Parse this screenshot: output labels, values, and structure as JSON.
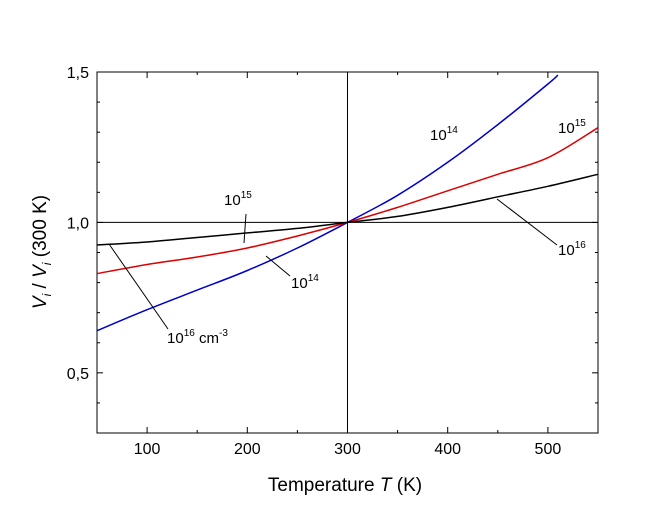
{
  "chart_data": {
    "type": "line",
    "title": "",
    "xlabel": {
      "prefix": "Temperature ",
      "italic": "T",
      "suffix": " (K)"
    },
    "ylabel": {
      "v1": "V",
      "sub1": "i",
      "slash": " / ",
      "v2": "V",
      "sub2": "i",
      "suffix": " (300 K)"
    },
    "xlim": [
      50,
      550
    ],
    "ylim": [
      0.3,
      1.5
    ],
    "xticks": [
      100,
      200,
      300,
      400,
      500
    ],
    "xtick_labels": [
      "100",
      "200",
      "300",
      "400",
      "500"
    ],
    "yticks": [
      0.5,
      1.0,
      1.5
    ],
    "ytick_labels": [
      "0,5",
      "1,0",
      "1,5"
    ],
    "reference_lines": {
      "y": 1.0,
      "x": 300
    },
    "series": [
      {
        "name": "10^14",
        "color": "#0000cc",
        "x": [
          50,
          100,
          150,
          200,
          250,
          300,
          350,
          400,
          450,
          500,
          510
        ],
        "y": [
          0.64,
          0.71,
          0.775,
          0.84,
          0.915,
          1.0,
          1.09,
          1.2,
          1.325,
          1.46,
          1.49
        ]
      },
      {
        "name": "10^15",
        "color": "#dd0000",
        "x": [
          50,
          100,
          150,
          200,
          250,
          300,
          350,
          400,
          450,
          500,
          550
        ],
        "y": [
          0.83,
          0.86,
          0.885,
          0.915,
          0.955,
          1.0,
          1.05,
          1.105,
          1.16,
          1.215,
          1.315
        ]
      },
      {
        "name": "10^16",
        "color": "#000000",
        "x": [
          50,
          100,
          150,
          200,
          250,
          300,
          350,
          400,
          450,
          500,
          550
        ],
        "y": [
          0.925,
          0.935,
          0.95,
          0.965,
          0.98,
          1.0,
          1.02,
          1.05,
          1.085,
          1.12,
          1.16
        ]
      }
    ],
    "annotations": [
      {
        "id": "a1",
        "base": "10",
        "sup": "14",
        "unit": ""
      },
      {
        "id": "a2",
        "base": "10",
        "sup": "15",
        "unit": ""
      },
      {
        "id": "a3",
        "base": "10",
        "sup": "15",
        "unit": ""
      },
      {
        "id": "a4",
        "base": "10",
        "sup": "14",
        "unit": ""
      },
      {
        "id": "a5",
        "base": "10",
        "sup": "16",
        "unit": ""
      },
      {
        "id": "a6",
        "base": "10",
        "sup": "16",
        "unit": " cm",
        "unit_sup": "-3"
      }
    ]
  }
}
